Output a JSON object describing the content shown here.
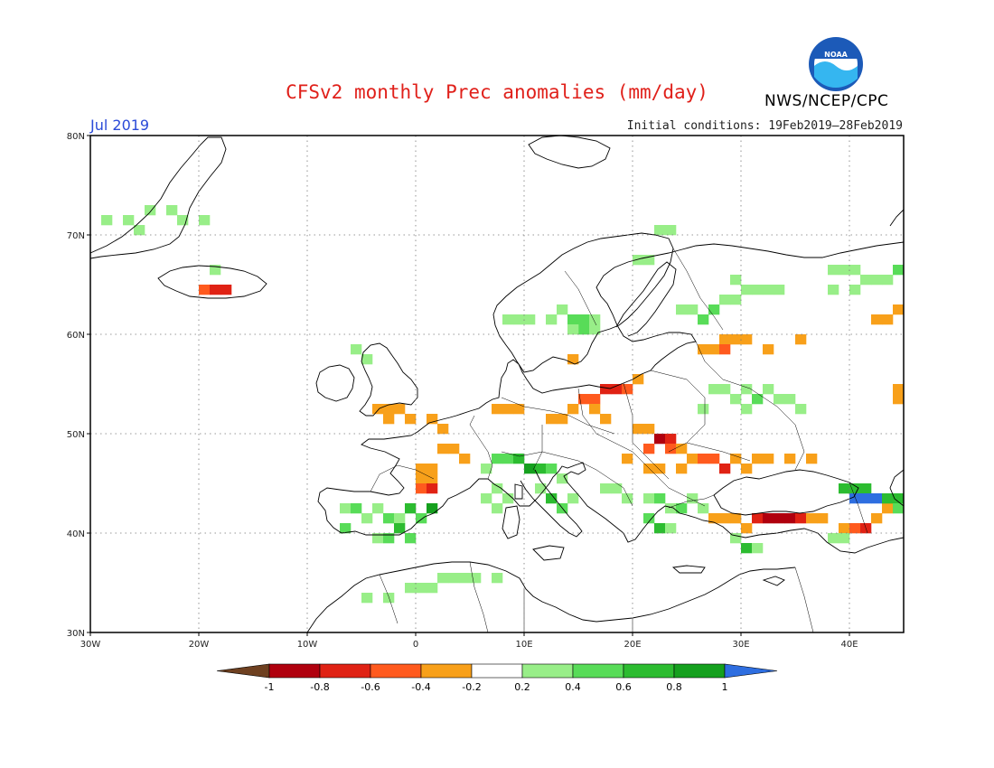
{
  "header": {
    "title": "CFSv2 monthly Prec anomalies (mm/day)",
    "agency": "NWS/NCEP/CPC",
    "logo_text": "NOAA"
  },
  "map": {
    "period": "Jul 2019",
    "initial_conditions": "Initial conditions: 19Feb2019–28Feb2019",
    "lon_range": [
      -30,
      45
    ],
    "lat_range": [
      30,
      80
    ],
    "lon_ticks": [
      {
        "value": -30,
        "label": "30W"
      },
      {
        "value": -20,
        "label": "20W"
      },
      {
        "value": -10,
        "label": "10W"
      },
      {
        "value": 0,
        "label": "0"
      },
      {
        "value": 10,
        "label": "10E"
      },
      {
        "value": 20,
        "label": "20E"
      },
      {
        "value": 30,
        "label": "30E"
      },
      {
        "value": 40,
        "label": "40E"
      }
    ],
    "lat_ticks": [
      {
        "value": 30,
        "label": "30N"
      },
      {
        "value": 40,
        "label": "40N"
      },
      {
        "value": 50,
        "label": "50N"
      },
      {
        "value": 60,
        "label": "60N"
      },
      {
        "value": 70,
        "label": "70N"
      },
      {
        "value": 80,
        "label": "80N"
      }
    ],
    "grid": "dotted"
  },
  "colorbar": {
    "labels": [
      "-1",
      "-0.8",
      "-0.6",
      "-0.4",
      "-0.2",
      "0.2",
      "0.4",
      "0.6",
      "0.8",
      "1"
    ],
    "low_color": "#6e4020",
    "high_color": "#2e6ee0",
    "colors": [
      "#b0000e",
      "#e02214",
      "#ff5a1e",
      "#f8a01a",
      "#ffffff",
      "#98ee88",
      "#58dc58",
      "#2cbc30",
      "#15a01e"
    ]
  },
  "anomaly_colors": {
    "-1": "#a00000",
    "-0.8": "#b0000e",
    "-0.6": "#e02214",
    "-0.4": "#ff5a1e",
    "-0.2": "#f8a01a",
    "0.2": "#98ee88",
    "0.4": "#58dc58",
    "0.6": "#2cbc30",
    "0.8": "#15a01e",
    "1": "#2e6ee0"
  },
  "anomaly_cells": [
    {
      "lon": -29,
      "lat": 71,
      "v": 0.2
    },
    {
      "lon": -27,
      "lat": 71,
      "v": 0.2
    },
    {
      "lon": -25,
      "lat": 72,
      "v": 0.2
    },
    {
      "lon": -23,
      "lat": 72,
      "v": 0.2
    },
    {
      "lon": -22,
      "lat": 71,
      "v": 0.2
    },
    {
      "lon": -26,
      "lat": 70,
      "v": 0.2
    },
    {
      "lon": -20,
      "lat": 71,
      "v": 0.2
    },
    {
      "lon": -19,
      "lat": 66,
      "v": 0.2
    },
    {
      "lon": -20,
      "lat": 64,
      "v": -0.4
    },
    {
      "lon": -19,
      "lat": 64,
      "v": -0.6
    },
    {
      "lon": -18,
      "lat": 64,
      "v": -0.6
    },
    {
      "lon": -6,
      "lat": 58,
      "v": 0.2
    },
    {
      "lon": -5,
      "lat": 57,
      "v": 0.2
    },
    {
      "lon": -4,
      "lat": 52,
      "v": -0.2
    },
    {
      "lon": -3,
      "lat": 52,
      "v": -0.2
    },
    {
      "lon": -2,
      "lat": 52,
      "v": -0.2
    },
    {
      "lon": -1,
      "lat": 51,
      "v": -0.2
    },
    {
      "lon": -3,
      "lat": 51,
      "v": -0.2
    },
    {
      "lon": 1,
      "lat": 51,
      "v": -0.2
    },
    {
      "lon": 2,
      "lat": 50,
      "v": -0.2
    },
    {
      "lon": 2,
      "lat": 48,
      "v": -0.2
    },
    {
      "lon": 3,
      "lat": 48,
      "v": -0.2
    },
    {
      "lon": 4,
      "lat": 47,
      "v": -0.2
    },
    {
      "lon": 0,
      "lat": 46,
      "v": -0.2
    },
    {
      "lon": 1,
      "lat": 46,
      "v": -0.2
    },
    {
      "lon": 0,
      "lat": 45,
      "v": -0.2
    },
    {
      "lon": 1,
      "lat": 45,
      "v": -0.2
    },
    {
      "lon": 0,
      "lat": 44,
      "v": -0.4
    },
    {
      "lon": 1,
      "lat": 44,
      "v": -0.6
    },
    {
      "lon": 7,
      "lat": 52,
      "v": -0.2
    },
    {
      "lon": 8,
      "lat": 52,
      "v": -0.2
    },
    {
      "lon": 9,
      "lat": 52,
      "v": -0.2
    },
    {
      "lon": 12,
      "lat": 51,
      "v": -0.2
    },
    {
      "lon": 13,
      "lat": 51,
      "v": -0.2
    },
    {
      "lon": 15,
      "lat": 53,
      "v": -0.4
    },
    {
      "lon": 16,
      "lat": 53,
      "v": -0.4
    },
    {
      "lon": 17,
      "lat": 54,
      "v": -0.6
    },
    {
      "lon": 18,
      "lat": 54,
      "v": -0.6
    },
    {
      "lon": 19,
      "lat": 54,
      "v": -0.4
    },
    {
      "lon": 20,
      "lat": 55,
      "v": -0.2
    },
    {
      "lon": 14,
      "lat": 52,
      "v": -0.2
    },
    {
      "lon": 16,
      "lat": 52,
      "v": -0.2
    },
    {
      "lon": 17,
      "lat": 51,
      "v": -0.2
    },
    {
      "lon": 14,
      "lat": 57,
      "v": -0.2
    },
    {
      "lon": 20,
      "lat": 50,
      "v": -0.2
    },
    {
      "lon": 21,
      "lat": 50,
      "v": -0.2
    },
    {
      "lon": 22,
      "lat": 49,
      "v": -0.8
    },
    {
      "lon": 23,
      "lat": 49,
      "v": -0.6
    },
    {
      "lon": 21,
      "lat": 48,
      "v": -0.4
    },
    {
      "lon": 23,
      "lat": 48,
      "v": -0.4
    },
    {
      "lon": 24,
      "lat": 48,
      "v": -0.2
    },
    {
      "lon": 25,
      "lat": 47,
      "v": -0.2
    },
    {
      "lon": 26,
      "lat": 47,
      "v": -0.4
    },
    {
      "lon": 27,
      "lat": 47,
      "v": -0.4
    },
    {
      "lon": 28,
      "lat": 46,
      "v": -0.6
    },
    {
      "lon": 29,
      "lat": 47,
      "v": -0.2
    },
    {
      "lon": 30,
      "lat": 46,
      "v": -0.2
    },
    {
      "lon": 31,
      "lat": 47,
      "v": -0.2
    },
    {
      "lon": 32,
      "lat": 47,
      "v": -0.2
    },
    {
      "lon": 34,
      "lat": 47,
      "v": -0.2
    },
    {
      "lon": 36,
      "lat": 47,
      "v": -0.2
    },
    {
      "lon": 22,
      "lat": 46,
      "v": -0.2
    },
    {
      "lon": 24,
      "lat": 46,
      "v": -0.2
    },
    {
      "lon": 21,
      "lat": 46,
      "v": -0.2
    },
    {
      "lon": 19,
      "lat": 47,
      "v": -0.2
    },
    {
      "lon": 26,
      "lat": 58,
      "v": -0.2
    },
    {
      "lon": 27,
      "lat": 58,
      "v": -0.2
    },
    {
      "lon": 28,
      "lat": 59,
      "v": -0.2
    },
    {
      "lon": 29,
      "lat": 59,
      "v": -0.2
    },
    {
      "lon": 30,
      "lat": 59,
      "v": -0.2
    },
    {
      "lon": 32,
      "lat": 58,
      "v": -0.2
    },
    {
      "lon": 28,
      "lat": 58,
      "v": -0.4
    },
    {
      "lon": 42,
      "lat": 61,
      "v": -0.2
    },
    {
      "lon": 43,
      "lat": 61,
      "v": -0.2
    },
    {
      "lon": 44,
      "lat": 62,
      "v": -0.2
    },
    {
      "lon": 44,
      "lat": 53,
      "v": -0.2
    },
    {
      "lon": 44,
      "lat": 54,
      "v": -0.2
    },
    {
      "lon": 35,
      "lat": 59,
      "v": -0.2
    },
    {
      "lon": 27,
      "lat": 41,
      "v": -0.2
    },
    {
      "lon": 28,
      "lat": 41,
      "v": -0.2
    },
    {
      "lon": 29,
      "lat": 41,
      "v": -0.2
    },
    {
      "lon": 30,
      "lat": 40,
      "v": -0.2
    },
    {
      "lon": 31,
      "lat": 41,
      "v": -0.6
    },
    {
      "lon": 32,
      "lat": 41,
      "v": -0.8
    },
    {
      "lon": 33,
      "lat": 41,
      "v": -0.8
    },
    {
      "lon": 34,
      "lat": 41,
      "v": -0.8
    },
    {
      "lon": 35,
      "lat": 41,
      "v": -0.6
    },
    {
      "lon": 36,
      "lat": 41,
      "v": -0.2
    },
    {
      "lon": 37,
      "lat": 41,
      "v": -0.2
    },
    {
      "lon": 39,
      "lat": 40,
      "v": -0.2
    },
    {
      "lon": 40,
      "lat": 40,
      "v": -0.4
    },
    {
      "lon": 41,
      "lat": 40,
      "v": -0.6
    },
    {
      "lon": 42,
      "lat": 41,
      "v": -0.2
    },
    {
      "lon": 43,
      "lat": 42,
      "v": -0.2
    },
    {
      "lon": -7,
      "lat": 42,
      "v": 0.2
    },
    {
      "lon": -6,
      "lat": 42,
      "v": 0.4
    },
    {
      "lon": -5,
      "lat": 41,
      "v": 0.2
    },
    {
      "lon": -4,
      "lat": 42,
      "v": 0.2
    },
    {
      "lon": -3,
      "lat": 41,
      "v": 0.4
    },
    {
      "lon": -2,
      "lat": 41,
      "v": 0.2
    },
    {
      "lon": -1,
      "lat": 42,
      "v": 0.6
    },
    {
      "lon": 0,
      "lat": 41,
      "v": 0.4
    },
    {
      "lon": 1,
      "lat": 42,
      "v": 0.8
    },
    {
      "lon": -7,
      "lat": 40,
      "v": 0.4
    },
    {
      "lon": -4,
      "lat": 39,
      "v": 0.2
    },
    {
      "lon": -3,
      "lat": 39,
      "v": 0.4
    },
    {
      "lon": -2,
      "lat": 40,
      "v": 0.6
    },
    {
      "lon": -1,
      "lat": 39,
      "v": 0.4
    },
    {
      "lon": 7,
      "lat": 47,
      "v": 0.4
    },
    {
      "lon": 8,
      "lat": 47,
      "v": 0.4
    },
    {
      "lon": 9,
      "lat": 47,
      "v": 0.6
    },
    {
      "lon": 10,
      "lat": 46,
      "v": 0.8
    },
    {
      "lon": 11,
      "lat": 46,
      "v": 0.6
    },
    {
      "lon": 12,
      "lat": 46,
      "v": 0.4
    },
    {
      "lon": 13,
      "lat": 45,
      "v": 0.2
    },
    {
      "lon": 11,
      "lat": 44,
      "v": 0.2
    },
    {
      "lon": 12,
      "lat": 43,
      "v": 0.6
    },
    {
      "lon": 13,
      "lat": 42,
      "v": 0.4
    },
    {
      "lon": 14,
      "lat": 43,
      "v": 0.2
    },
    {
      "lon": 6,
      "lat": 46,
      "v": 0.2
    },
    {
      "lon": 7,
      "lat": 44,
      "v": 0.2
    },
    {
      "lon": 17,
      "lat": 44,
      "v": 0.2
    },
    {
      "lon": 18,
      "lat": 44,
      "v": 0.2
    },
    {
      "lon": 19,
      "lat": 43,
      "v": 0.2
    },
    {
      "lon": 21,
      "lat": 43,
      "v": 0.2
    },
    {
      "lon": 22,
      "lat": 43,
      "v": 0.4
    },
    {
      "lon": 23,
      "lat": 42,
      "v": 0.2
    },
    {
      "lon": 24,
      "lat": 42,
      "v": 0.4
    },
    {
      "lon": 25,
      "lat": 43,
      "v": 0.2
    },
    {
      "lon": 21,
      "lat": 41,
      "v": 0.4
    },
    {
      "lon": 22,
      "lat": 40,
      "v": 0.6
    },
    {
      "lon": 23,
      "lat": 40,
      "v": 0.2
    },
    {
      "lon": 26,
      "lat": 42,
      "v": 0.2
    },
    {
      "lon": 29,
      "lat": 39,
      "v": 0.2
    },
    {
      "lon": 30,
      "lat": 38,
      "v": 0.6
    },
    {
      "lon": 31,
      "lat": 38,
      "v": 0.2
    },
    {
      "lon": 39,
      "lat": 44,
      "v": 0.6
    },
    {
      "lon": 40,
      "lat": 44,
      "v": 0.6
    },
    {
      "lon": 41,
      "lat": 44,
      "v": 0.6
    },
    {
      "lon": 40,
      "lat": 43,
      "v": 1
    },
    {
      "lon": 41,
      "lat": 43,
      "v": 1
    },
    {
      "lon": 42,
      "lat": 43,
      "v": 1
    },
    {
      "lon": 43,
      "lat": 43,
      "v": 0.6
    },
    {
      "lon": 44,
      "lat": 43,
      "v": 0.6
    },
    {
      "lon": 44,
      "lat": 42,
      "v": 0.4
    },
    {
      "lon": 38,
      "lat": 39,
      "v": 0.2
    },
    {
      "lon": 39,
      "lat": 39,
      "v": 0.2
    },
    {
      "lon": -5,
      "lat": 33,
      "v": 0.2
    },
    {
      "lon": -3,
      "lat": 33,
      "v": 0.2
    },
    {
      "lon": -1,
      "lat": 34,
      "v": 0.2
    },
    {
      "lon": 0,
      "lat": 34,
      "v": 0.2
    },
    {
      "lon": 1,
      "lat": 34,
      "v": 0.2
    },
    {
      "lon": 2,
      "lat": 35,
      "v": 0.2
    },
    {
      "lon": 3,
      "lat": 35,
      "v": 0.2
    },
    {
      "lon": 4,
      "lat": 35,
      "v": 0.2
    },
    {
      "lon": 5,
      "lat": 35,
      "v": 0.2
    },
    {
      "lon": 7,
      "lat": 35,
      "v": 0.2
    },
    {
      "lon": 8,
      "lat": 61,
      "v": 0.2
    },
    {
      "lon": 9,
      "lat": 61,
      "v": 0.2
    },
    {
      "lon": 10,
      "lat": 61,
      "v": 0.2
    },
    {
      "lon": 12,
      "lat": 61,
      "v": 0.2
    },
    {
      "lon": 13,
      "lat": 62,
      "v": 0.2
    },
    {
      "lon": 14,
      "lat": 61,
      "v": 0.4
    },
    {
      "lon": 15,
      "lat": 61,
      "v": 0.4
    },
    {
      "lon": 16,
      "lat": 61,
      "v": 0.2
    },
    {
      "lon": 15,
      "lat": 60,
      "v": 0.4
    },
    {
      "lon": 14,
      "lat": 60,
      "v": 0.2
    },
    {
      "lon": 16,
      "lat": 60,
      "v": 0.2
    },
    {
      "lon": 20,
      "lat": 67,
      "v": 0.2
    },
    {
      "lon": 21,
      "lat": 67,
      "v": 0.2
    },
    {
      "lon": 22,
      "lat": 70,
      "v": 0.2
    },
    {
      "lon": 23,
      "lat": 70,
      "v": 0.2
    },
    {
      "lon": 24,
      "lat": 62,
      "v": 0.2
    },
    {
      "lon": 25,
      "lat": 62,
      "v": 0.2
    },
    {
      "lon": 26,
      "lat": 61,
      "v": 0.4
    },
    {
      "lon": 27,
      "lat": 62,
      "v": 0.4
    },
    {
      "lon": 28,
      "lat": 63,
      "v": 0.2
    },
    {
      "lon": 29,
      "lat": 65,
      "v": 0.2
    },
    {
      "lon": 30,
      "lat": 64,
      "v": 0.2
    },
    {
      "lon": 31,
      "lat": 64,
      "v": 0.2
    },
    {
      "lon": 32,
      "lat": 64,
      "v": 0.2
    },
    {
      "lon": 33,
      "lat": 64,
      "v": 0.2
    },
    {
      "lon": 29,
      "lat": 63,
      "v": 0.2
    },
    {
      "lon": 38,
      "lat": 66,
      "v": 0.2
    },
    {
      "lon": 39,
      "lat": 66,
      "v": 0.2
    },
    {
      "lon": 40,
      "lat": 66,
      "v": 0.2
    },
    {
      "lon": 41,
      "lat": 65,
      "v": 0.2
    },
    {
      "lon": 42,
      "lat": 65,
      "v": 0.2
    },
    {
      "lon": 43,
      "lat": 65,
      "v": 0.2
    },
    {
      "lon": 44,
      "lat": 66,
      "v": 0.4
    },
    {
      "lon": 38,
      "lat": 64,
      "v": 0.2
    },
    {
      "lon": 40,
      "lat": 64,
      "v": 0.2
    },
    {
      "lon": 27,
      "lat": 54,
      "v": 0.2
    },
    {
      "lon": 28,
      "lat": 54,
      "v": 0.2
    },
    {
      "lon": 29,
      "lat": 53,
      "v": 0.2
    },
    {
      "lon": 30,
      "lat": 54,
      "v": 0.2
    },
    {
      "lon": 31,
      "lat": 53,
      "v": 0.4
    },
    {
      "lon": 32,
      "lat": 54,
      "v": 0.2
    },
    {
      "lon": 33,
      "lat": 53,
      "v": 0.2
    },
    {
      "lon": 34,
      "lat": 53,
      "v": 0.2
    },
    {
      "lon": 35,
      "lat": 52,
      "v": 0.2
    },
    {
      "lon": 26,
      "lat": 52,
      "v": 0.2
    },
    {
      "lon": 30,
      "lat": 52,
      "v": 0.2
    },
    {
      "lon": 6,
      "lat": 43,
      "v": 0.2
    },
    {
      "lon": 7,
      "lat": 42,
      "v": 0.2
    },
    {
      "lon": 8,
      "lat": 43,
      "v": 0.2
    }
  ]
}
